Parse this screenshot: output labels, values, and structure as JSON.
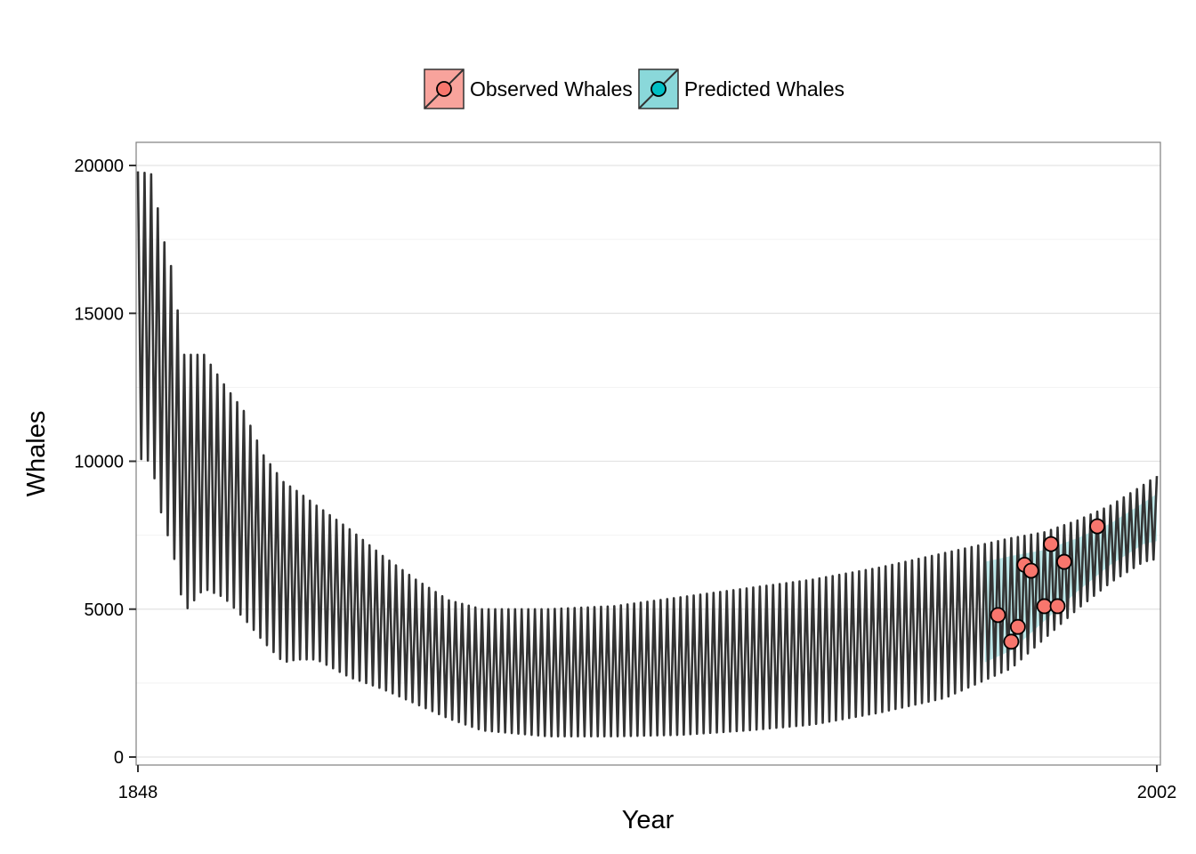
{
  "chart_data": {
    "type": "line",
    "title": "",
    "xlabel": "Year",
    "ylabel": "Whales",
    "xlim": [
      1848,
      2002
    ],
    "ylim": [
      0,
      20000
    ],
    "x_ticks": [
      "1848",
      "2002"
    ],
    "y_ticks": [
      "0",
      "5000",
      "10000",
      "15000",
      "20000"
    ],
    "grid": true,
    "legend_position": "top",
    "legend": [
      {
        "label": "Observed Whales",
        "color": "#F8766D"
      },
      {
        "label": "Predicted Whales",
        "color": "#00BFC4"
      }
    ],
    "series": [
      {
        "name": "Predicted Whales",
        "color": "#00BFC4",
        "style": "oscillating band (upper and lower trajectories)",
        "x": [
          1848,
          1850,
          1852,
          1853,
          1855,
          1858,
          1861,
          1864,
          1867,
          1870,
          1872,
          1875,
          1880,
          1885,
          1890,
          1895,
          1900,
          1910,
          1920,
          1930,
          1940,
          1950,
          1960,
          1970,
          1980,
          1985,
          1990,
          1995,
          2000,
          2002
        ],
        "upper": [
          19800,
          19700,
          17400,
          16600,
          13600,
          13600,
          12600,
          11700,
          10200,
          9300,
          9000,
          8500,
          7700,
          6800,
          6000,
          5300,
          5000,
          5000,
          5100,
          5400,
          5700,
          6000,
          6400,
          6900,
          7400,
          7600,
          8000,
          8500,
          9200,
          9500
        ],
        "lower": [
          10100,
          10000,
          7700,
          7300,
          4900,
          5700,
          5400,
          4700,
          3900,
          3200,
          3300,
          3300,
          2700,
          2300,
          1800,
          1300,
          900,
          700,
          700,
          750,
          900,
          1100,
          1500,
          2000,
          3000,
          4000,
          5000,
          5900,
          6600,
          6700
        ]
      },
      {
        "name": "Observed Whales",
        "color": "#F8766D",
        "style": "points",
        "x": [
          1978,
          1980,
          1981,
          1982,
          1983,
          1985,
          1986,
          1987,
          1988,
          1993
        ],
        "y": [
          4800,
          3900,
          4400,
          6500,
          6300,
          5100,
          7200,
          5100,
          6600,
          7800
        ]
      }
    ]
  }
}
